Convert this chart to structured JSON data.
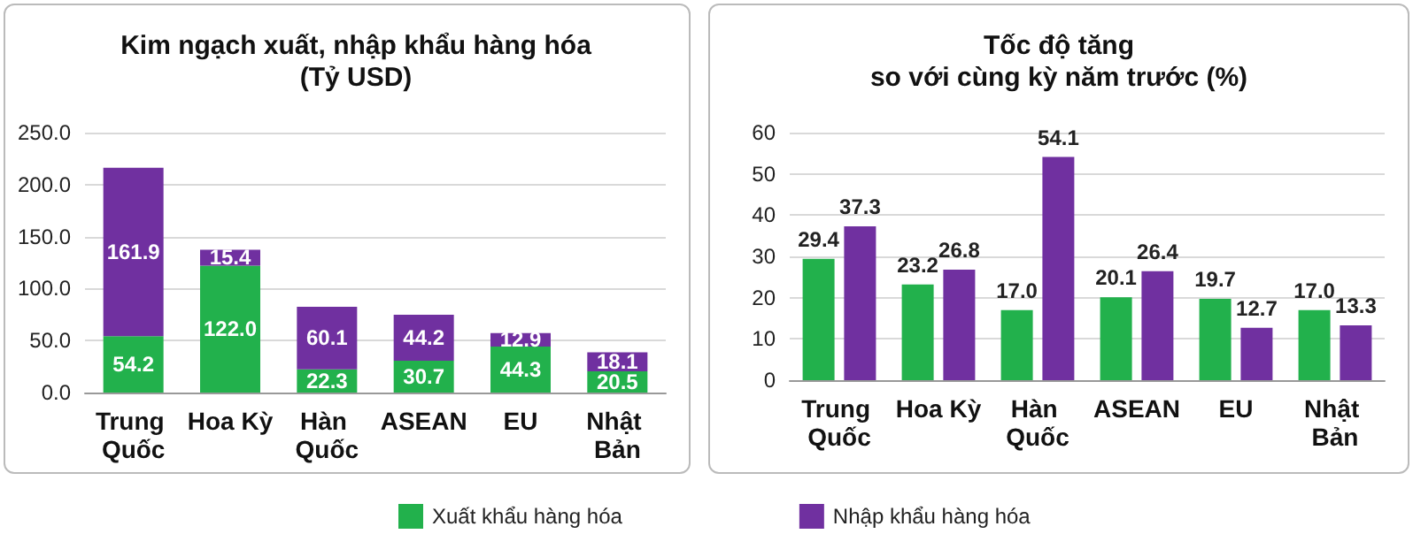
{
  "chart_data": [
    {
      "type": "bar",
      "title": "Kim ngạch xuất, nhập khẩu hàng hóa\n(Tỷ USD)",
      "stacked": true,
      "categories": [
        "Trung Quốc",
        "Hoa Kỳ",
        "Hàn Quốc",
        "ASEAN",
        "EU",
        "Nhật Bản"
      ],
      "series": [
        {
          "name": "Xuất khẩu hàng hóa",
          "color": "#22b14c",
          "values": [
            54.2,
            122.0,
            22.3,
            30.7,
            44.3,
            20.5
          ],
          "value_labels": [
            "54.2",
            "122.0",
            "22.3",
            "30.7",
            "44.3",
            "20.5"
          ]
        },
        {
          "name": "Nhập khẩu hàng hóa",
          "color": "#7030a0",
          "values": [
            161.9,
            15.4,
            60.1,
            44.2,
            12.9,
            18.1
          ],
          "value_labels": [
            "161.9",
            "15.4",
            "60.1",
            "44.2",
            "12.9",
            "18.1"
          ]
        }
      ],
      "ylim": [
        0,
        250
      ],
      "yticks": [
        {
          "value": 0,
          "label": "0.0"
        },
        {
          "value": 50,
          "label": "50.0"
        },
        {
          "value": 100,
          "label": "100.0"
        },
        {
          "value": 150,
          "label": "150.0"
        },
        {
          "value": 200,
          "label": "200.0"
        },
        {
          "value": 250,
          "label": "250.0"
        }
      ],
      "grid": "y",
      "legend": "bottom"
    },
    {
      "type": "bar",
      "title": "Tốc độ tăng\nso với cùng kỳ năm trước (%)",
      "categories": [
        "Trung Quốc",
        "Hoa Kỳ",
        "Hàn Quốc",
        "ASEAN",
        "EU",
        "Nhật Bản"
      ],
      "series": [
        {
          "color": "#22b14c",
          "values": [
            29.4,
            23.2,
            17.0,
            20.1,
            19.7,
            17.0
          ],
          "value_labels": [
            "29.4",
            "23.2",
            "17.0",
            "20.1",
            "19.7",
            "17.0"
          ]
        },
        {
          "color": "#7030a0",
          "values": [
            37.3,
            26.8,
            54.1,
            26.4,
            12.7,
            13.3
          ],
          "value_labels": [
            "37.3",
            "26.8",
            "54.1",
            "26.4",
            "12.7",
            "13.3"
          ]
        }
      ],
      "ylim": [
        0,
        60
      ],
      "yticks": [
        0,
        10,
        20,
        30,
        40,
        50,
        60
      ],
      "grid": "y"
    }
  ]
}
